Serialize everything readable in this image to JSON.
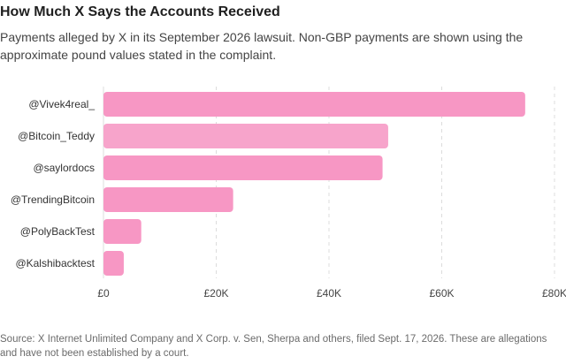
{
  "title": "How Much X Says the Accounts Received",
  "subtitle": "Payments alleged by X in its September 2026 lawsuit. Non-GBP payments are shown using the approximate pound values stated in the complaint.",
  "source": "Source: X Internet Unlimited Company and X Corp. v. Sen, Sherpa and others, filed Sept. 17, 2026. These are allegations and have not been established by a court.",
  "chart_data": {
    "type": "bar",
    "orientation": "horizontal",
    "categories": [
      "@Vivek4real_",
      "@Bitcoin_Teddy",
      "@saylordocs",
      "@TrendingBitcoin",
      "@PolyBackTest",
      "@Kalshibacktest"
    ],
    "values": [
      74800,
      50500,
      49500,
      23000,
      6700,
      3600
    ],
    "xlim": [
      0,
      80000
    ],
    "ticks": [
      0,
      20000,
      40000,
      60000,
      80000
    ],
    "tick_labels": [
      "£0",
      "£20K",
      "£40K",
      "£60K",
      "£80K"
    ],
    "grid": true,
    "bar_colors": [
      "#f797c4",
      "#f7a4cb",
      "#f797c4",
      "#f797c4",
      "#f797c4",
      "#f797c4"
    ],
    "grid_color": "#dcdcdc"
  }
}
